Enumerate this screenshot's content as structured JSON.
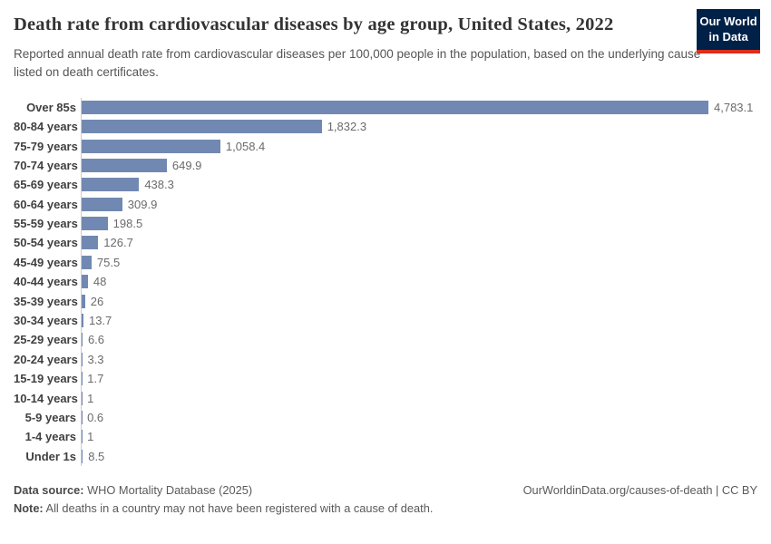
{
  "header": {
    "title": "Death rate from cardiovascular diseases by age group, United States, 2022",
    "subtitle": "Reported annual death rate from cardiovascular diseases per 100,000 people in the population, based on the underlying cause listed on death certificates.",
    "logo": {
      "line1": "Our World",
      "line2": "in Data",
      "bg_color": "#002147",
      "accent_color": "#dc2e1c"
    }
  },
  "chart_data": {
    "type": "bar",
    "orientation": "horizontal",
    "title": "Death rate from cardiovascular diseases by age group, United States, 2022",
    "xlabel": "",
    "ylabel": "",
    "grid": false,
    "legend": false,
    "axis_max": 4783.1,
    "bar_color": "#7189b2",
    "axis_line_color": "#cccccc",
    "categories": [
      "Over 85s",
      "80-84 years",
      "75-79 years",
      "70-74 years",
      "65-69 years",
      "60-64 years",
      "55-59 years",
      "50-54 years",
      "45-49 years",
      "40-44 years",
      "35-39 years",
      "30-34 years",
      "25-29 years",
      "20-24 years",
      "15-19 years",
      "10-14 years",
      "5-9 years",
      "1-4 years",
      "Under 1s"
    ],
    "values": [
      4783.1,
      1832.3,
      1058.4,
      649.9,
      438.3,
      309.9,
      198.5,
      126.7,
      75.5,
      48,
      26,
      13.7,
      6.6,
      3.3,
      1.7,
      1,
      0.6,
      1,
      8.5
    ],
    "value_labels": [
      "4,783.1",
      "1,832.3",
      "1,058.4",
      "649.9",
      "438.3",
      "309.9",
      "198.5",
      "126.7",
      "75.5",
      "48",
      "26",
      "13.7",
      "6.6",
      "3.3",
      "1.7",
      "1",
      "0.6",
      "1",
      "8.5"
    ]
  },
  "footer": {
    "source_label": "Data source:",
    "source_text": " WHO Mortality Database (2025)",
    "note_label": "Note:",
    "note_text": " All deaths in a country may not have been registered with a cause of death.",
    "credit": "OurWorldinData.org/causes-of-death | CC BY"
  }
}
